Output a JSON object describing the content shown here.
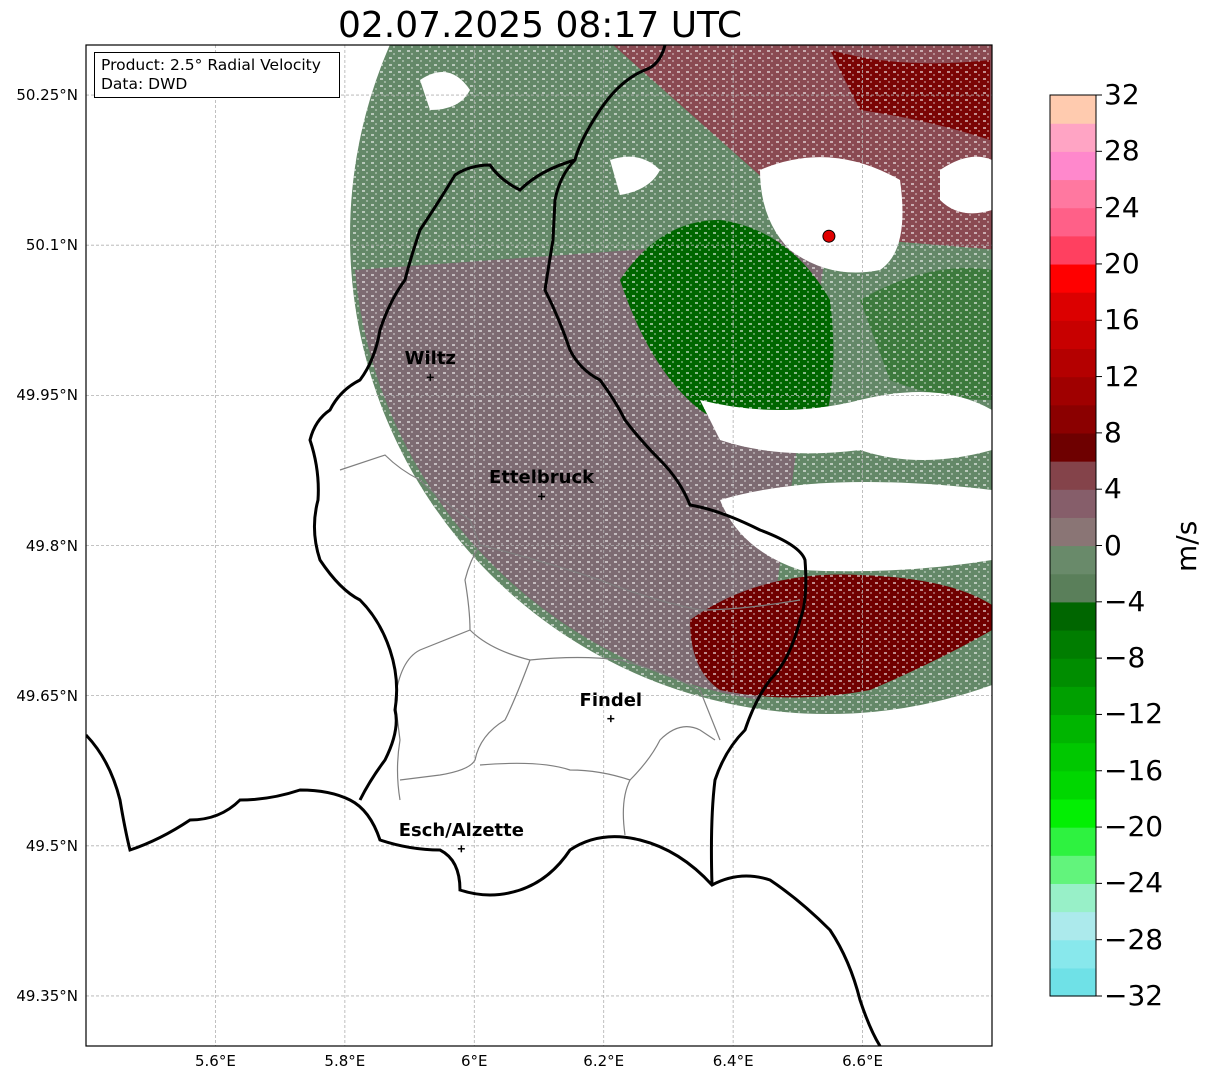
{
  "title": "02.07.2025 08:17 UTC",
  "info": {
    "product": "Product: 2.5° Radial Velocity",
    "source": "Data: DWD"
  },
  "lat_ticks": [
    {
      "value": 50.25,
      "label": "50.25°N"
    },
    {
      "value": 50.1,
      "label": "50.1°N"
    },
    {
      "value": 49.95,
      "label": "49.95°N"
    },
    {
      "value": 49.8,
      "label": "49.8°N"
    },
    {
      "value": 49.65,
      "label": "49.65°N"
    },
    {
      "value": 49.5,
      "label": "49.5°N"
    },
    {
      "value": 49.35,
      "label": "49.35°N"
    }
  ],
  "lon_ticks": [
    {
      "value": 5.6,
      "label": "5.6°E"
    },
    {
      "value": 5.8,
      "label": "5.8°E"
    },
    {
      "value": 6.0,
      "label": "6°E"
    },
    {
      "value": 6.2,
      "label": "6.2°E"
    },
    {
      "value": 6.4,
      "label": "6.4°E"
    },
    {
      "value": 6.6,
      "label": "6.6°E"
    }
  ],
  "extent": {
    "lon_min": 5.4,
    "lon_max": 6.8,
    "lat_min": 49.3,
    "lat_max": 50.3
  },
  "radar_site": {
    "lon": 6.548,
    "lat": 50.109
  },
  "cities": [
    {
      "name": "Wiltz",
      "lon": 5.932,
      "lat": 49.968
    },
    {
      "name": "Ettelbruck",
      "lon": 6.104,
      "lat": 49.849
    },
    {
      "name": "Findel",
      "lon": 6.211,
      "lat": 49.627
    },
    {
      "name": "Esch/Alzette",
      "lon": 5.98,
      "lat": 49.497
    }
  ],
  "colorbar": {
    "unit": "m/s",
    "min": -32,
    "max": 32,
    "ticks": [
      "−32",
      "−28",
      "−24",
      "−20",
      "−16",
      "−12",
      "−8",
      "−4",
      "0",
      "4",
      "8",
      "12",
      "16",
      "20",
      "24",
      "28",
      "32"
    ],
    "colors": [
      "#6fe1e7",
      "#88e8ec",
      "#aceaec",
      "#98f0c8",
      "#62f47c",
      "#2ef240",
      "#03ef03",
      "#00d700",
      "#00c800",
      "#00b500",
      "#00a000",
      "#008d00",
      "#007d00",
      "#006600",
      "#5a7f5a",
      "#698a6a",
      "#8a7575",
      "#865e6a",
      "#84434a",
      "#6e0000",
      "#8b0000",
      "#a00000",
      "#b40000",
      "#c80000",
      "#dc0000",
      "#ff0000",
      "#ff4060",
      "#ff6088",
      "#ff78a0",
      "#ff88cc",
      "#ffa4c4",
      "#ffcbaf"
    ]
  }
}
